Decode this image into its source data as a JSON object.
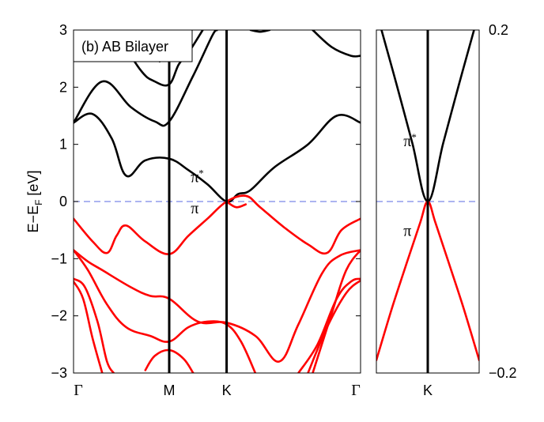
{
  "chart_data": [
    {
      "type": "line",
      "title": "(b) AB Bilayer",
      "ylabel_main": "E−E",
      "ylabel_sub": "F",
      "ylabel_unit": " [eV]",
      "ylim": [
        -3,
        3
      ],
      "yticks": [
        "−3",
        "−2",
        "−1",
        "0",
        "1",
        "2",
        "3"
      ],
      "xticks": [
        "Γ",
        "M",
        "K",
        "Γ"
      ],
      "x_positions": [
        0,
        1,
        1.6,
        3
      ],
      "fermi_level": 0,
      "annotations": [
        {
          "text": "π",
          "sup": "*",
          "x": 1.2,
          "y": 0.3
        },
        {
          "text": "π",
          "sup": "",
          "x": 1.2,
          "y": -0.25
        }
      ],
      "colors": {
        "conduction": "#000000",
        "valence": "#ff0000",
        "fermi": "#7b86e8"
      },
      "series": [
        {
          "band": "conduction",
          "values": [
            [
              0,
              1.38
            ],
            [
              0.2,
              1.53
            ],
            [
              0.4,
              1.1
            ],
            [
              0.55,
              0.45
            ],
            [
              0.75,
              0.72
            ],
            [
              1,
              0.75
            ],
            [
              1.2,
              0.55
            ],
            [
              1.4,
              0.3
            ],
            [
              1.6,
              0.0
            ],
            [
              1.72,
              0.13
            ],
            [
              1.85,
              0.2
            ],
            [
              2.1,
              0.6
            ],
            [
              2.45,
              1.0
            ],
            [
              2.75,
              1.5
            ],
            [
              3,
              1.38
            ]
          ]
        },
        {
          "band": "conduction",
          "values": [
            [
              0,
              1.38
            ],
            [
              0.3,
              2.1
            ],
            [
              0.6,
              1.65
            ],
            [
              0.85,
              1.4
            ],
            [
              1,
              1.4
            ],
            [
              1.25,
              2.2
            ],
            [
              1.45,
              2.9
            ],
            [
              1.5,
              3
            ]
          ]
        },
        {
          "band": "conduction",
          "values": [
            [
              0.43,
              3
            ],
            [
              0.7,
              2.3
            ],
            [
              0.85,
              2.1
            ],
            [
              1,
              2.05
            ],
            [
              1.1,
              2.4
            ],
            [
              1.2,
              2.6
            ],
            [
              1.35,
              3
            ]
          ]
        },
        {
          "band": "conduction",
          "values": [
            [
              0.9,
              2.45
            ],
            [
              1,
              2.6
            ],
            [
              1.2,
              2.95
            ]
          ]
        },
        {
          "band": "conduction",
          "values": [
            [
              2.5,
              3
            ],
            [
              2.7,
              2.7
            ],
            [
              2.9,
              2.55
            ],
            [
              3,
              2.55
            ]
          ]
        },
        {
          "band": "conduction",
          "values": [
            [
              1.85,
              3
            ],
            [
              1.95,
              2.97
            ],
            [
              2.05,
              3
            ]
          ]
        },
        {
          "band": "valence",
          "values": [
            [
              0,
              -0.3
            ],
            [
              0.2,
              -0.7
            ],
            [
              0.35,
              -0.9
            ],
            [
              0.45,
              -0.6
            ],
            [
              0.55,
              -0.42
            ],
            [
              0.75,
              -0.7
            ],
            [
              1,
              -0.92
            ],
            [
              1.2,
              -0.6
            ],
            [
              1.4,
              -0.3
            ],
            [
              1.6,
              0.0
            ],
            [
              1.8,
              0.1
            ],
            [
              1.95,
              -0.1
            ],
            [
              2.2,
              -0.45
            ],
            [
              2.45,
              -0.75
            ],
            [
              2.65,
              -0.9
            ],
            [
              2.8,
              -0.5
            ],
            [
              3,
              -0.3
            ]
          ]
        },
        {
          "band": "valence",
          "values": [
            [
              1.6,
              0.0
            ],
            [
              1.7,
              -0.1
            ],
            [
              1.8,
              -0.05
            ]
          ]
        },
        {
          "band": "valence",
          "values": [
            [
              0,
              -0.85
            ],
            [
              0.15,
              -1.05
            ],
            [
              0.3,
              -1.2
            ],
            [
              0.6,
              -1.5
            ],
            [
              0.8,
              -1.65
            ],
            [
              1,
              -1.7
            ],
            [
              1.3,
              -2.1
            ],
            [
              1.6,
              -2.12
            ],
            [
              1.9,
              -2.35
            ],
            [
              2.15,
              -2.8
            ],
            [
              2.35,
              -2.15
            ],
            [
              2.6,
              -1.25
            ],
            [
              2.78,
              -0.95
            ],
            [
              3,
              -0.85
            ]
          ]
        },
        {
          "band": "valence",
          "values": [
            [
              0,
              -0.85
            ],
            [
              0.15,
              -1.2
            ],
            [
              0.35,
              -1.8
            ],
            [
              0.55,
              -2.2
            ],
            [
              0.8,
              -2.35
            ],
            [
              1,
              -2.45
            ],
            [
              1.2,
              -2.2
            ],
            [
              1.4,
              -2.1
            ],
            [
              1.6,
              -2.15
            ],
            [
              1.75,
              -2.45
            ],
            [
              1.9,
              -3
            ]
          ]
        },
        {
          "band": "valence",
          "values": [
            [
              0,
              -1.35
            ],
            [
              0.12,
              -1.5
            ],
            [
              0.25,
              -2.1
            ],
            [
              0.35,
              -2.8
            ],
            [
              0.42,
              -3
            ]
          ]
        },
        {
          "band": "valence",
          "values": [
            [
              0,
              -1.4
            ],
            [
              0.1,
              -1.7
            ],
            [
              0.2,
              -2.4
            ],
            [
              0.3,
              -3
            ]
          ]
        },
        {
          "band": "valence",
          "values": [
            [
              0.75,
              -2.95
            ],
            [
              0.85,
              -2.7
            ],
            [
              1,
              -2.6
            ],
            [
              1.15,
              -2.75
            ],
            [
              1.25,
              -3
            ]
          ]
        },
        {
          "band": "valence",
          "values": [
            [
              2.35,
              -3
            ],
            [
              2.55,
              -2.5
            ],
            [
              2.75,
              -1.7
            ],
            [
              2.9,
              -1.4
            ],
            [
              3,
              -1.35
            ]
          ]
        },
        {
          "band": "valence",
          "values": [
            [
              2.45,
              -3
            ],
            [
              2.65,
              -2.2
            ],
            [
              2.85,
              -1.6
            ],
            [
              3,
              -1.38
            ]
          ]
        },
        {
          "band": "valence",
          "values": [
            [
              2.5,
              -3
            ],
            [
              2.7,
              -1.95
            ],
            [
              2.85,
              -1.2
            ],
            [
              3,
              -0.85
            ]
          ]
        }
      ]
    },
    {
      "type": "line",
      "ylim": [
        -0.2,
        0.2
      ],
      "yticks": [
        "−0.2",
        "0.2"
      ],
      "xticks": [
        "K"
      ],
      "xlim": [
        -1,
        1
      ],
      "fermi_level": 0,
      "annotations": [
        {
          "text": "π",
          "sup": "*",
          "x": -0.38,
          "y": 0.06
        },
        {
          "text": "π",
          "sup": "",
          "x": -0.38,
          "y": -0.02
        }
      ],
      "series": [
        {
          "band": "conduction",
          "values": [
            [
              -0.9,
              0.2
            ],
            [
              -0.6,
              0.135
            ],
            [
              -0.3,
              0.068
            ],
            [
              0,
              0.0
            ],
            [
              0.3,
              0.068
            ],
            [
              0.6,
              0.135
            ],
            [
              0.9,
              0.2
            ]
          ]
        },
        {
          "band": "valence",
          "values": [
            [
              -1,
              -0.185
            ],
            [
              -0.7,
              -0.125
            ],
            [
              -0.4,
              -0.07
            ],
            [
              -0.15,
              -0.025
            ],
            [
              0,
              0.0
            ],
            [
              0.15,
              -0.025
            ],
            [
              0.4,
              -0.07
            ],
            [
              0.7,
              -0.125
            ],
            [
              1,
              -0.185
            ]
          ]
        }
      ]
    }
  ]
}
